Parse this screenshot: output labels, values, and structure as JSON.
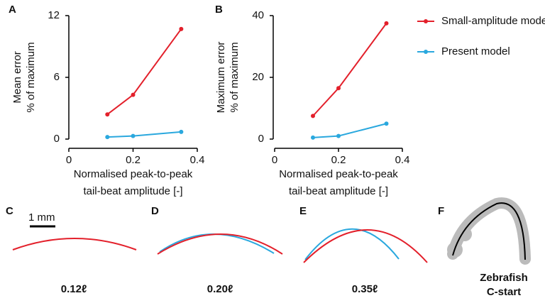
{
  "chart_data": [
    {
      "type": "line",
      "label": "A",
      "ylabel": [
        "Mean error",
        "% of maximum"
      ],
      "xlabel": [
        "Normalised peak-to-peak",
        "tail-beat amplitude [-]"
      ],
      "x": [
        0.12,
        0.2,
        0.35
      ],
      "xlim": [
        0,
        0.4
      ],
      "xticks": [
        0,
        0.2,
        0.4
      ],
      "ylim": [
        0,
        12
      ],
      "yticks": [
        0,
        6,
        12
      ],
      "legend": "upper right",
      "series": [
        {
          "name": "Small-amplitude model",
          "color": "#e3202b",
          "values": [
            2.4,
            4.3,
            10.7
          ]
        },
        {
          "name": "Present model",
          "color": "#2aa8de",
          "values": [
            0.2,
            0.3,
            0.7
          ]
        }
      ]
    },
    {
      "type": "line",
      "label": "B",
      "ylabel": [
        "Maximum error",
        "% of maximum"
      ],
      "xlabel": [
        "Normalised peak-to-peak",
        "tail-beat amplitude [-]"
      ],
      "x": [
        0.12,
        0.2,
        0.35
      ],
      "xlim": [
        0,
        0.4
      ],
      "xticks": [
        0,
        0.2,
        0.4
      ],
      "ylim": [
        0,
        40
      ],
      "yticks": [
        0,
        20,
        40
      ],
      "series": [
        {
          "color": "#e3202b",
          "values": [
            7.5,
            16.5,
            37.5
          ]
        },
        {
          "color": "#2aa8de",
          "values": [
            0.5,
            1,
            5
          ]
        }
      ]
    }
  ],
  "panels": [
    {
      "label": "C",
      "caption": "0.12ℓ",
      "scale_bar": "1 mm"
    },
    {
      "label": "D",
      "caption": "0.20ℓ"
    },
    {
      "label": "E",
      "caption": "0.35ℓ"
    },
    {
      "label": "F",
      "caption": [
        "Zebrafish",
        "C-start"
      ]
    }
  ]
}
